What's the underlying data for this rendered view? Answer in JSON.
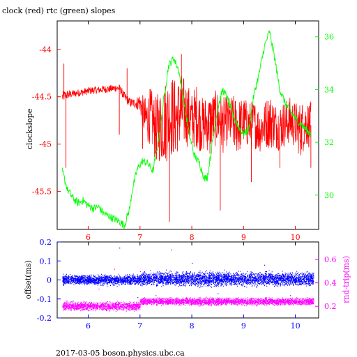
{
  "title": "clock (red) rtc (green) slopes",
  "footer": "2017-03-05  boson.physics.ubc.ca",
  "colors": {
    "frame": "#000000",
    "red": "#ff0000",
    "green": "#00ff00",
    "blue": "#0000ff",
    "magenta": "#ff00ff",
    "bottom_axis": "#0000ff",
    "bottom_right_axis": "#ff00ff"
  },
  "chart_data": [
    {
      "type": "line",
      "title": "clock (red) rtc (green) slopes",
      "xlabel": "",
      "ylabel": "clockslope",
      "y2label": "",
      "xlim": [
        5.4,
        10.45
      ],
      "ylim": [
        -45.9,
        -43.7
      ],
      "y2lim": [
        28.7,
        36.6
      ],
      "x_ticks": [
        "6",
        "7",
        "8",
        "9",
        "10"
      ],
      "y_ticks": [
        "-44",
        "-44.5",
        "-45",
        "-45.5"
      ],
      "y2_ticks": [
        "36",
        "34",
        "32",
        "30"
      ],
      "grid": false,
      "series": [
        {
          "name": "clock",
          "axis": "left",
          "color": "#ff0000",
          "x": [
            5.5,
            5.6,
            5.7,
            5.8,
            5.9,
            6.0,
            6.1,
            6.2,
            6.3,
            6.4,
            6.5,
            6.6,
            6.7,
            6.8,
            6.9,
            7.0,
            7.1,
            7.2,
            7.3,
            7.4,
            7.5,
            7.6,
            7.7,
            7.8,
            7.9,
            8.0,
            8.1,
            8.2,
            8.3,
            8.4,
            8.5,
            8.6,
            8.7,
            8.8,
            8.9,
            9.0,
            9.1,
            9.2,
            9.3,
            9.4,
            9.5,
            9.6,
            9.7,
            9.8,
            9.9,
            10.0,
            10.1,
            10.2,
            10.3
          ],
          "y": [
            -44.5,
            -44.48,
            -44.47,
            -44.46,
            -44.45,
            -44.44,
            -44.43,
            -44.43,
            -44.42,
            -44.42,
            -44.41,
            -44.41,
            -44.5,
            -44.56,
            -44.57,
            -44.56,
            -44.75,
            -44.7,
            -44.85,
            -44.8,
            -44.75,
            -44.7,
            -44.72,
            -44.65,
            -44.68,
            -44.75,
            -44.7,
            -44.8,
            -44.78,
            -44.75,
            -44.72,
            -44.8,
            -44.75,
            -44.78,
            -44.82,
            -44.75,
            -44.8,
            -44.78,
            -44.85,
            -44.8,
            -44.75,
            -44.8,
            -44.82,
            -44.78,
            -44.75,
            -44.8,
            -44.85,
            -44.78,
            -44.8
          ],
          "spread": [
            0.06,
            0.05,
            0.04,
            0.04,
            0.04,
            0.04,
            0.04,
            0.04,
            0.04,
            0.04,
            0.04,
            0.04,
            0.05,
            0.05,
            0.05,
            0.1,
            0.25,
            0.3,
            0.35,
            0.4,
            0.45,
            0.45,
            0.4,
            0.4,
            0.35,
            0.3,
            0.35,
            0.3,
            0.3,
            0.3,
            0.3,
            0.3,
            0.25,
            0.3,
            0.3,
            0.25,
            0.25,
            0.25,
            0.25,
            0.25,
            0.3,
            0.25,
            0.25,
            0.25,
            0.25,
            0.25,
            0.3,
            0.25,
            0.25
          ],
          "spikes": [
            {
              "x": 5.53,
              "y": -44.15
            },
            {
              "x": 5.57,
              "y": -45.25
            },
            {
              "x": 6.6,
              "y": -44.9
            },
            {
              "x": 6.75,
              "y": -44.2
            },
            {
              "x": 7.05,
              "y": -45.05
            },
            {
              "x": 7.57,
              "y": -45.82
            },
            {
              "x": 7.8,
              "y": -44.05
            },
            {
              "x": 8.35,
              "y": -45.1
            },
            {
              "x": 8.55,
              "y": -45.7
            },
            {
              "x": 9.15,
              "y": -45.4
            },
            {
              "x": 9.7,
              "y": -45.25
            },
            {
              "x": 10.3,
              "y": -45.25
            }
          ]
        },
        {
          "name": "rtc",
          "axis": "right",
          "color": "#00ff00",
          "x": [
            5.5,
            5.6,
            5.7,
            5.8,
            5.9,
            6.0,
            6.1,
            6.2,
            6.3,
            6.4,
            6.5,
            6.6,
            6.7,
            6.8,
            6.85,
            6.95,
            7.05,
            7.15,
            7.25,
            7.35,
            7.45,
            7.55,
            7.65,
            7.75,
            7.85,
            7.95,
            8.05,
            8.15,
            8.25,
            8.3,
            8.4,
            8.5,
            8.6,
            8.7,
            8.8,
            8.9,
            9.0,
            9.1,
            9.2,
            9.3,
            9.4,
            9.5,
            9.6,
            9.7,
            9.8,
            9.9,
            10.0,
            10.1,
            10.2,
            10.3
          ],
          "y": [
            30.9,
            30.2,
            29.9,
            29.7,
            29.8,
            29.6,
            29.5,
            29.55,
            29.3,
            29.2,
            29.1,
            29.0,
            28.85,
            29.5,
            30.2,
            31.0,
            31.3,
            31.2,
            30.9,
            32.0,
            33.5,
            34.9,
            35.2,
            34.7,
            33.5,
            32.3,
            31.5,
            31.2,
            30.6,
            30.7,
            32.0,
            33.3,
            34.0,
            33.6,
            33.0,
            32.6,
            32.3,
            32.5,
            33.8,
            34.6,
            35.6,
            36.2,
            35.2,
            34.0,
            33.5,
            33.2,
            32.9,
            32.7,
            32.5,
            32.3
          ],
          "noise": 0.15
        }
      ]
    },
    {
      "type": "scatter",
      "xlabel": "",
      "ylabel": "offset(ms)",
      "y2label": "rnd-trip(ms)",
      "xlim": [
        5.4,
        10.45
      ],
      "ylim": [
        -0.2,
        0.2
      ],
      "y2lim": [
        0.1,
        0.75
      ],
      "x_ticks": [
        "6",
        "7",
        "8",
        "9",
        "10"
      ],
      "y_ticks": [
        "0.2",
        "0.1",
        "0",
        "-0.1",
        "-0.2"
      ],
      "y2_ticks": [
        "0.6",
        "0.4",
        "0.2"
      ],
      "grid": false,
      "series": [
        {
          "name": "offset",
          "axis": "left",
          "color": "#0000ff",
          "segments": [
            {
              "x0": 5.5,
              "x1": 7.0,
              "center": 0.0,
              "spread": 0.025
            },
            {
              "x0": 7.0,
              "x1": 10.35,
              "center": 0.005,
              "spread": 0.035
            }
          ],
          "outliers": [
            {
              "x": 6.6,
              "y": 0.17
            },
            {
              "x": 7.6,
              "y": 0.16
            },
            {
              "x": 6.95,
              "y": -0.09
            },
            {
              "x": 8.0,
              "y": 0.09
            },
            {
              "x": 9.4,
              "y": 0.08
            },
            {
              "x": 7.3,
              "y": -0.08
            },
            {
              "x": 8.5,
              "y": -0.07
            },
            {
              "x": 9.9,
              "y": -0.08
            },
            {
              "x": 5.7,
              "y": -0.11
            }
          ]
        },
        {
          "name": "rnd-trip",
          "axis": "right",
          "color": "#ff00ff",
          "segments": [
            {
              "x0": 5.5,
              "x1": 7.0,
              "center": 0.2,
              "spread": 0.035
            },
            {
              "x0": 7.0,
              "x1": 10.35,
              "center": 0.24,
              "spread": 0.03
            }
          ],
          "outliers": [
            {
              "x": 6.5,
              "y": 0.52
            },
            {
              "x": 7.0,
              "y": 0.5
            },
            {
              "x": 8.5,
              "y": 0.45
            },
            {
              "x": 9.5,
              "y": 0.43
            },
            {
              "x": 6.2,
              "y": 0.35
            },
            {
              "x": 7.8,
              "y": 0.38
            }
          ]
        }
      ]
    }
  ]
}
